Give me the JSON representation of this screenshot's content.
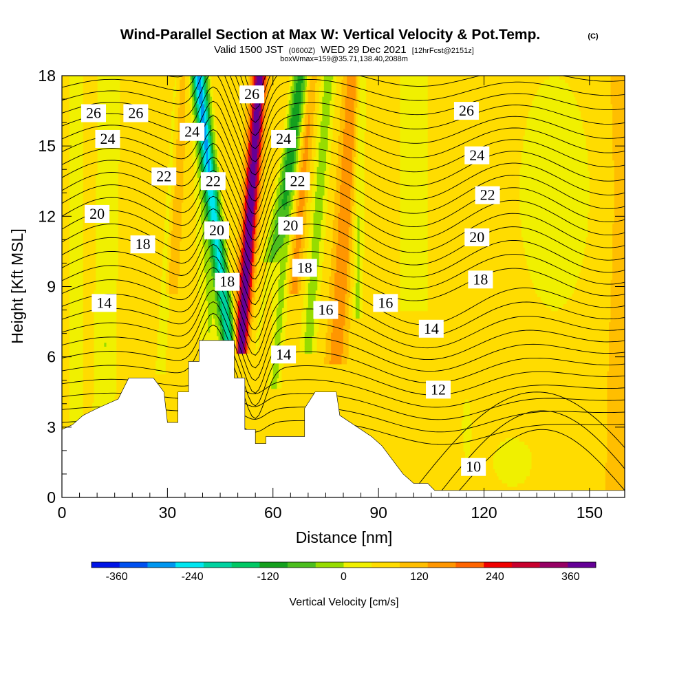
{
  "title": "Wind-Parallel Section at Max W: Vertical Velocity & Pot.Temp.",
  "title_mark": "(C)",
  "subtitle": {
    "valid_prefix": "Valid 1500 JST",
    "utc": "(0600Z)",
    "date": "WED 29 Dec 2021",
    "fcst": "[12hrFcst@2151z]"
  },
  "box_info": "boxWmax=159@35.71,138.40,2088m",
  "chart_data": {
    "type": "heatmap",
    "xlabel": "Distance [nm]",
    "ylabel": "Height [Kft MSL]",
    "xlim": [
      0,
      160
    ],
    "ylim": [
      0,
      18
    ],
    "x_ticks": [
      0,
      30,
      60,
      90,
      120,
      150
    ],
    "y_ticks": [
      0,
      3,
      6,
      9,
      12,
      15,
      18
    ],
    "colorbar": {
      "label": "Vertical Velocity [cm/s]",
      "range": [
        -400,
        400
      ],
      "step": 40,
      "tick_values": [
        -360,
        -240,
        -120,
        0,
        120,
        240,
        360
      ],
      "tick_labels": [
        "-360",
        "-240",
        "-120",
        "0",
        "120",
        "240",
        "360"
      ],
      "colors": [
        "#0014e6",
        "#0050f0",
        "#0096f0",
        "#00e6f0",
        "#00d2a0",
        "#00c864",
        "#14a01e",
        "#4bbe1e",
        "#96dc00",
        "#f0f000",
        "#ffdc00",
        "#ffbe00",
        "#ff9600",
        "#ff6400",
        "#f00000",
        "#c8002d",
        "#960064",
        "#640096"
      ]
    },
    "terrain_kft": [
      [
        0,
        2.9
      ],
      [
        3,
        3.1
      ],
      [
        6,
        3.5
      ],
      [
        10,
        3.8
      ],
      [
        16,
        4.2
      ],
      [
        19,
        5.1
      ],
      [
        26,
        5.1
      ],
      [
        29,
        4.5
      ],
      [
        30,
        3.2
      ],
      [
        33,
        3.2
      ],
      [
        33,
        4.5
      ],
      [
        36,
        4.5
      ],
      [
        36,
        5.8
      ],
      [
        39,
        5.8
      ],
      [
        39,
        6.7
      ],
      [
        49,
        6.7
      ],
      [
        49,
        5.1
      ],
      [
        52,
        5.1
      ],
      [
        52,
        2.9
      ],
      [
        55,
        2.9
      ],
      [
        55,
        2.3
      ],
      [
        58,
        2.3
      ],
      [
        58,
        2.6
      ],
      [
        61,
        2.6
      ],
      [
        61,
        2.6
      ],
      [
        69,
        2.6
      ],
      [
        69,
        3.8
      ],
      [
        72,
        4.5
      ],
      [
        78,
        4.5
      ],
      [
        79,
        3.5
      ],
      [
        82,
        3.2
      ],
      [
        85,
        2.9
      ],
      [
        88,
        2.6
      ],
      [
        91,
        2.2
      ],
      [
        94,
        1.6
      ],
      [
        97,
        1.0
      ],
      [
        100,
        0.6
      ],
      [
        104,
        0.6
      ],
      [
        106,
        0.3
      ],
      [
        160,
        0.3
      ]
    ],
    "isentropes": [
      10,
      12,
      14,
      16,
      18,
      20,
      22,
      24,
      26
    ],
    "contour_labels": [
      {
        "text": "26",
        "x": 9,
        "y": 16.4
      },
      {
        "text": "26",
        "x": 21,
        "y": 16.4
      },
      {
        "text": "24",
        "x": 13,
        "y": 15.3
      },
      {
        "text": "24",
        "x": 37,
        "y": 15.6
      },
      {
        "text": "26",
        "x": 54,
        "y": 17.2
      },
      {
        "text": "24",
        "x": 63,
        "y": 15.3
      },
      {
        "text": "26",
        "x": 115,
        "y": 16.5
      },
      {
        "text": "22",
        "x": 29,
        "y": 13.7
      },
      {
        "text": "22",
        "x": 43,
        "y": 13.5
      },
      {
        "text": "22",
        "x": 67,
        "y": 13.5
      },
      {
        "text": "24",
        "x": 118,
        "y": 14.6
      },
      {
        "text": "20",
        "x": 10,
        "y": 12.1
      },
      {
        "text": "22",
        "x": 121,
        "y": 12.9
      },
      {
        "text": "20",
        "x": 44,
        "y": 11.4
      },
      {
        "text": "20",
        "x": 65,
        "y": 11.6
      },
      {
        "text": "18",
        "x": 23,
        "y": 10.8
      },
      {
        "text": "20",
        "x": 118,
        "y": 11.1
      },
      {
        "text": "18",
        "x": 69,
        "y": 9.8
      },
      {
        "text": "18",
        "x": 47,
        "y": 9.2
      },
      {
        "text": "18",
        "x": 119,
        "y": 9.3
      },
      {
        "text": "14",
        "x": 12,
        "y": 8.3
      },
      {
        "text": "16",
        "x": 75,
        "y": 8.0
      },
      {
        "text": "16",
        "x": 92,
        "y": 8.3
      },
      {
        "text": "14",
        "x": 105,
        "y": 7.2
      },
      {
        "text": "14",
        "x": 63,
        "y": 6.1
      },
      {
        "text": "12",
        "x": 107,
        "y": 4.6
      },
      {
        "text": "10",
        "x": 117,
        "y": 1.3
      }
    ]
  }
}
